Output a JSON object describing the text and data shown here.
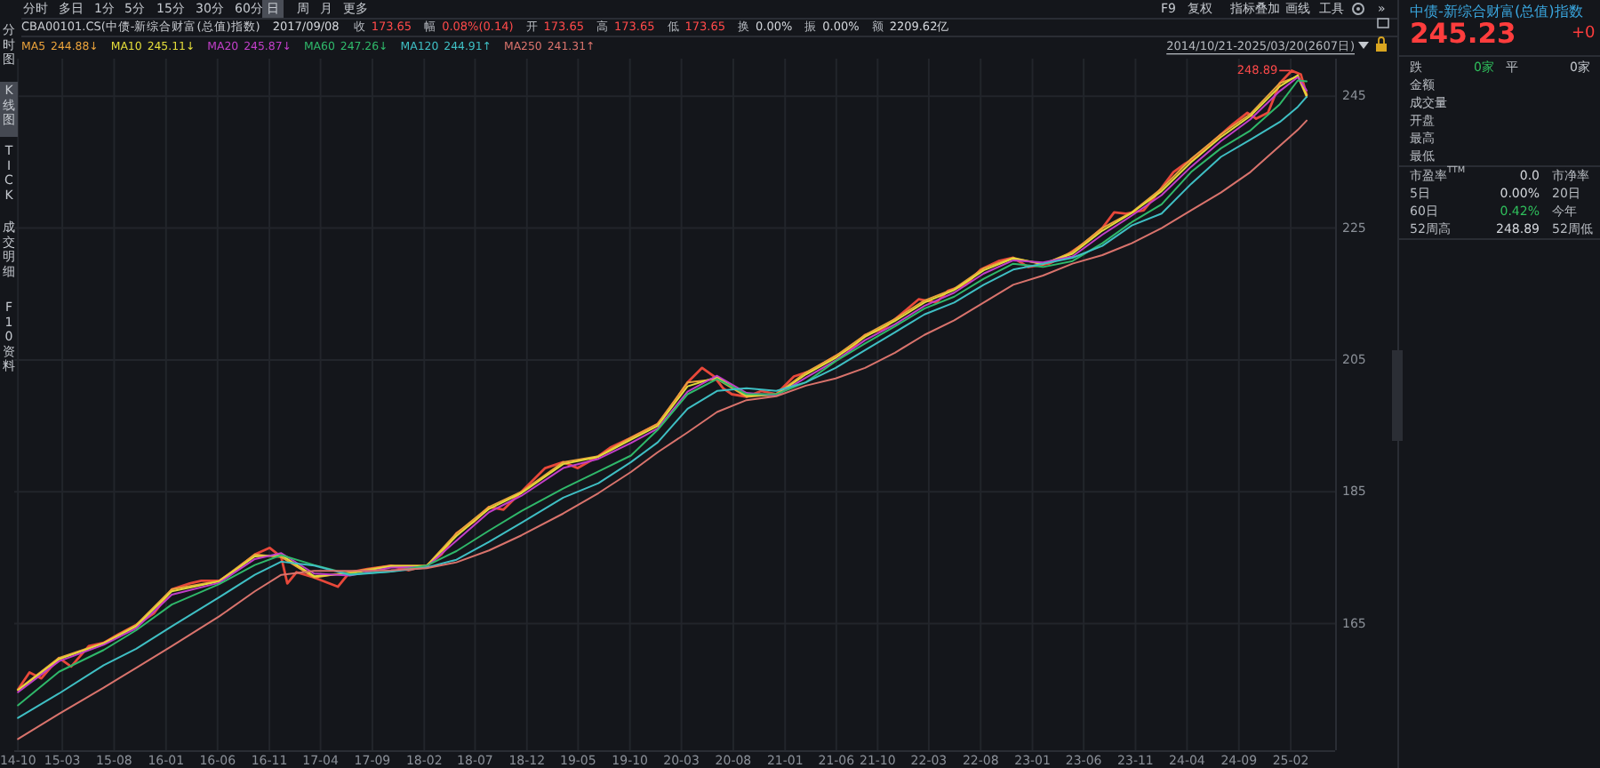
{
  "chart_data": [
    {
      "type": "line",
      "title": "CBA00101.CS(中债-新综合财富(总值)指数)",
      "subtitle": "2014/10/21-2025/03/20(2607日)",
      "xlim": [
        "2014-10-10",
        "2025-06-12"
      ],
      "xticks": [
        {
          "value": "2014-10-21",
          "label": "14-10"
        },
        {
          "value": "2015-03",
          "label": "15-03"
        },
        {
          "value": "2015-08",
          "label": "15-08"
        },
        {
          "value": "2016-01",
          "label": "16-01"
        },
        {
          "value": "2016-06",
          "label": "16-06"
        },
        {
          "value": "2016-11",
          "label": "16-11"
        },
        {
          "value": "2017-04",
          "label": "17-04"
        },
        {
          "value": "2017-09",
          "label": "17-09"
        },
        {
          "value": "2018-02",
          "label": "18-02"
        },
        {
          "value": "2018-07",
          "label": "18-07"
        },
        {
          "value": "2018-12",
          "label": "18-12"
        },
        {
          "value": "2019-05",
          "label": "19-05"
        },
        {
          "value": "2019-10",
          "label": "19-10"
        },
        {
          "value": "2020-03",
          "label": "20-03"
        },
        {
          "value": "2020-08",
          "label": "20-08"
        },
        {
          "value": "2021-01",
          "label": "21-01"
        },
        {
          "value": "2021-06",
          "label": "21-06"
        },
        {
          "value": "2021-10",
          "label": "21-10"
        },
        {
          "value": "2022-03",
          "label": "22-03"
        },
        {
          "value": "2022-08",
          "label": "22-08"
        },
        {
          "value": "2023-01",
          "label": "23-01"
        },
        {
          "value": "2023-06",
          "label": "23-06"
        },
        {
          "value": "2023-11",
          "label": "23-11"
        },
        {
          "value": "2024-04",
          "label": "24-04"
        },
        {
          "value": "2024-09",
          "label": "24-09"
        },
        {
          "value": "2025-02",
          "label": "25-02"
        }
      ],
      "ylim": [
        145.8,
        250.7
      ],
      "yticks": [
        165,
        185,
        205,
        225,
        245
      ],
      "grid": true,
      "legend": "top left",
      "series": [
        {
          "color": "#e8483a",
          "x": [
            "2014-10-21",
            "2014-11-24",
            "2014-12-29",
            "2015-02-19",
            "2015-03-27",
            "2015-05-18",
            "2015-07-01",
            "2015-08-14",
            "2015-10-05",
            "2015-11-27",
            "2016-01-18",
            "2016-03-11",
            "2016-04-14",
            "2016-06-06",
            "2016-07-28",
            "2016-09-19",
            "2016-11-02",
            "2016-12-06",
            "2016-12-24",
            "2017-01-20",
            "2017-03-13",
            "2017-05-22",
            "2017-06-26",
            "2017-08-17",
            "2017-10-26",
            "2017-12-18",
            "2018-02-08",
            "2018-03-24",
            "2018-05-07",
            "2018-06-28",
            "2018-08-11",
            "2018-09-23",
            "2018-11-15",
            "2019-01-24",
            "2019-03-18",
            "2019-04-30",
            "2019-06-30",
            "2019-08-04",
            "2019-10-04",
            "2019-12-22",
            "2020-02-13",
            "2020-03-19",
            "2020-05-01",
            "2020-06-05",
            "2020-07-02",
            "2020-07-28",
            "2020-09-09",
            "2020-10-23",
            "2020-12-06",
            "2021-01-27",
            "2021-03-21",
            "2021-05-30",
            "2021-07-21",
            "2021-08-25",
            "2021-10-17",
            "2021-12-08",
            "2022-01-30",
            "2022-03-23",
            "2022-04-27",
            "2022-06-18",
            "2022-08-01",
            "2022-09-23",
            "2022-11-05",
            "2022-12-19",
            "2023-02-18",
            "2023-04-12",
            "2023-06-03",
            "2023-07-26",
            "2023-08-30",
            "2023-10-04",
            "2023-11-25",
            "2023-12-30",
            "2024-02-21",
            "2024-03-27",
            "2024-04-30",
            "2024-06-22",
            "2024-08-13",
            "2024-09-26",
            "2024-10-22",
            "2024-11-26",
            "2024-12-31",
            "2025-02-04",
            "2025-03-03",
            "2025-03-20"
          ],
          "values": [
            155.0,
            157.6,
            156.7,
            159.8,
            158.5,
            161.6,
            162.1,
            163.4,
            164.8,
            166.6,
            170.2,
            171.1,
            171.5,
            171.5,
            173.3,
            175.5,
            176.5,
            175.1,
            171.1,
            172.8,
            172.0,
            170.6,
            172.8,
            173.3,
            173.8,
            173.1,
            173.8,
            175.5,
            178.7,
            180.5,
            182.7,
            182.3,
            185.0,
            188.6,
            189.5,
            188.6,
            190.4,
            191.7,
            193.2,
            195.3,
            198.9,
            201.6,
            203.8,
            202.5,
            200.7,
            199.8,
            199.4,
            200.3,
            199.8,
            202.5,
            203.4,
            205.6,
            207.0,
            208.8,
            209.7,
            211.9,
            214.2,
            213.7,
            215.5,
            216.4,
            218.7,
            220.0,
            220.5,
            219.1,
            219.6,
            220.9,
            222.7,
            225.0,
            227.4,
            227.2,
            227.7,
            229.9,
            233.5,
            234.8,
            235.8,
            238.4,
            240.7,
            242.5,
            241.6,
            242.5,
            247.0,
            248.89,
            248.3,
            245.23
          ]
        },
        {
          "name": "MA5",
          "color": "#e9a23b",
          "x": [
            "2014-10-21",
            "2015-02-19",
            "2015-07-01",
            "2015-10-05",
            "2016-01-18",
            "2016-06-06",
            "2016-09-19",
            "2016-12-06",
            "2017-03-13",
            "2017-06-26",
            "2017-10-26",
            "2018-02-08",
            "2018-05-07",
            "2018-08-11",
            "2018-11-15",
            "2019-03-18",
            "2019-06-30",
            "2019-10-04",
            "2019-12-22",
            "2020-03-19",
            "2020-06-14",
            "2020-09-09",
            "2020-12-06",
            "2021-03-03",
            "2021-05-30",
            "2021-08-25",
            "2021-11-21",
            "2022-02-16",
            "2022-05-15",
            "2022-08-10",
            "2022-11-05",
            "2023-02-01",
            "2023-04-29",
            "2023-07-26",
            "2023-10-21",
            "2024-01-17",
            "2024-04-13",
            "2024-07-10",
            "2024-10-05",
            "2024-12-31",
            "2025-02-22",
            "2025-03-20"
          ],
          "values": [
            155.0,
            159.8,
            162.1,
            164.8,
            170.2,
            171.5,
            175.5,
            175.1,
            172.0,
            172.8,
            173.8,
            173.8,
            178.7,
            182.7,
            185.0,
            189.5,
            190.4,
            193.2,
            195.3,
            201.6,
            202.1,
            199.4,
            199.8,
            203.1,
            205.6,
            208.8,
            211.2,
            214.0,
            215.8,
            218.9,
            220.5,
            219.5,
            221.4,
            225.0,
            227.4,
            231.0,
            235.5,
            239.2,
            242.3,
            247.0,
            248.0,
            244.88
          ]
        },
        {
          "name": "MA10",
          "color": "#e3dc3a",
          "x": [
            "2014-10-21",
            "2015-02-19",
            "2015-07-01",
            "2015-10-05",
            "2016-01-18",
            "2016-06-06",
            "2016-09-19",
            "2016-12-06",
            "2017-03-13",
            "2017-06-26",
            "2017-10-26",
            "2018-02-08",
            "2018-05-07",
            "2018-08-11",
            "2018-11-15",
            "2019-03-18",
            "2019-06-30",
            "2019-10-04",
            "2019-12-22",
            "2020-03-19",
            "2020-06-14",
            "2020-09-09",
            "2020-12-06",
            "2021-03-03",
            "2021-05-30",
            "2021-08-25",
            "2021-11-21",
            "2022-02-16",
            "2022-05-15",
            "2022-08-10",
            "2022-11-05",
            "2023-02-01",
            "2023-04-29",
            "2023-07-26",
            "2023-10-21",
            "2024-01-17",
            "2024-04-13",
            "2024-07-10",
            "2024-10-05",
            "2024-12-31",
            "2025-02-22",
            "2025-03-20"
          ],
          "values": [
            154.9,
            159.6,
            162.0,
            164.6,
            169.9,
            171.4,
            175.2,
            175.4,
            172.2,
            172.6,
            173.7,
            173.7,
            178.3,
            182.4,
            184.8,
            189.2,
            190.3,
            192.9,
            195.0,
            201.0,
            202.4,
            199.6,
            199.7,
            202.8,
            205.3,
            208.5,
            210.9,
            213.7,
            215.6,
            218.6,
            220.4,
            219.6,
            221.1,
            224.6,
            227.3,
            230.6,
            235.0,
            238.8,
            242.0,
            246.5,
            248.2,
            245.11
          ]
        },
        {
          "name": "MA20",
          "color": "#c23fc9",
          "x": [
            "2014-10-21",
            "2015-02-19",
            "2015-07-01",
            "2015-10-05",
            "2016-01-18",
            "2016-06-06",
            "2016-09-19",
            "2016-12-06",
            "2017-03-13",
            "2017-06-26",
            "2017-10-26",
            "2018-02-08",
            "2018-05-07",
            "2018-08-11",
            "2018-11-15",
            "2019-03-18",
            "2019-06-30",
            "2019-10-04",
            "2019-12-22",
            "2020-03-19",
            "2020-06-14",
            "2020-09-09",
            "2020-12-06",
            "2021-03-03",
            "2021-05-30",
            "2021-08-25",
            "2021-11-21",
            "2022-02-16",
            "2022-05-15",
            "2022-08-10",
            "2022-11-05",
            "2023-02-01",
            "2023-04-29",
            "2023-07-26",
            "2023-10-21",
            "2024-01-17",
            "2024-04-13",
            "2024-07-10",
            "2024-10-05",
            "2024-12-31",
            "2025-02-22",
            "2025-03-20"
          ],
          "values": [
            154.6,
            159.3,
            161.8,
            164.3,
            169.4,
            171.2,
            174.8,
            175.7,
            172.6,
            172.3,
            173.5,
            173.6,
            177.6,
            181.9,
            184.4,
            188.6,
            190.0,
            192.4,
            194.6,
            200.2,
            202.6,
            200.0,
            199.6,
            202.3,
            204.9,
            208.0,
            210.4,
            213.2,
            215.2,
            218.1,
            220.1,
            219.8,
            220.7,
            224.0,
            226.9,
            230.0,
            234.3,
            238.2,
            241.5,
            245.8,
            247.9,
            245.87
          ]
        },
        {
          "name": "MA60",
          "color": "#2fb86a",
          "x": [
            "2014-10-21",
            "2015-02-19",
            "2015-07-01",
            "2015-10-05",
            "2016-01-18",
            "2016-06-06",
            "2016-09-19",
            "2016-12-06",
            "2017-03-13",
            "2017-06-26",
            "2017-10-26",
            "2018-02-08",
            "2018-05-07",
            "2018-08-11",
            "2018-11-15",
            "2019-03-18",
            "2019-06-30",
            "2019-10-04",
            "2019-12-22",
            "2020-03-19",
            "2020-06-14",
            "2020-09-09",
            "2020-12-06",
            "2021-03-03",
            "2021-05-30",
            "2021-08-25",
            "2021-11-21",
            "2022-02-16",
            "2022-05-15",
            "2022-08-10",
            "2022-11-05",
            "2023-02-01",
            "2023-04-29",
            "2023-07-26",
            "2023-10-21",
            "2024-01-17",
            "2024-04-13",
            "2024-07-10",
            "2024-10-05",
            "2024-12-31",
            "2025-02-22",
            "2025-03-20"
          ],
          "values": [
            152.6,
            157.7,
            161.0,
            164.0,
            167.9,
            171.0,
            173.9,
            175.4,
            173.9,
            172.5,
            172.9,
            173.8,
            176.0,
            179.1,
            182.1,
            185.5,
            188.1,
            190.5,
            194.4,
            199.8,
            202.1,
            199.8,
            199.8,
            201.6,
            204.8,
            207.5,
            210.1,
            212.8,
            214.6,
            217.3,
            219.6,
            219.1,
            220.0,
            222.7,
            225.9,
            228.6,
            233.5,
            237.1,
            239.8,
            243.8,
            247.4,
            247.26
          ]
        },
        {
          "name": "MA120",
          "color": "#3fbfc4",
          "x": [
            "2014-10-21",
            "2015-02-19",
            "2015-07-01",
            "2015-10-05",
            "2016-01-18",
            "2016-06-06",
            "2016-09-19",
            "2016-12-06",
            "2017-03-13",
            "2017-06-26",
            "2017-10-26",
            "2018-02-08",
            "2018-05-07",
            "2018-08-11",
            "2018-11-15",
            "2019-03-18",
            "2019-06-30",
            "2019-10-04",
            "2019-12-22",
            "2020-03-19",
            "2020-06-14",
            "2020-09-09",
            "2020-12-06",
            "2021-03-03",
            "2021-05-30",
            "2021-08-25",
            "2021-11-21",
            "2022-02-16",
            "2022-05-15",
            "2022-08-10",
            "2022-11-05",
            "2023-02-01",
            "2023-04-29",
            "2023-07-26",
            "2023-10-21",
            "2024-01-17",
            "2024-04-13",
            "2024-07-10",
            "2024-10-05",
            "2024-12-31",
            "2025-02-22",
            "2025-03-20"
          ],
          "values": [
            150.7,
            154.4,
            158.7,
            161.2,
            164.6,
            169.0,
            172.4,
            174.4,
            173.8,
            172.4,
            172.9,
            173.5,
            174.7,
            177.4,
            180.3,
            184.1,
            186.3,
            189.5,
            192.5,
            197.6,
            200.3,
            200.7,
            200.3,
            201.6,
            203.8,
            206.5,
            209.2,
            211.9,
            213.7,
            216.4,
            218.7,
            219.6,
            220.5,
            222.3,
            225.4,
            227.2,
            231.7,
            235.8,
            238.4,
            241.1,
            243.4,
            244.91
          ]
        },
        {
          "name": "MA250",
          "color": "#d9736c",
          "x": [
            "2014-10-21",
            "2015-02-19",
            "2015-07-01",
            "2015-10-05",
            "2016-01-18",
            "2016-06-06",
            "2016-09-19",
            "2016-12-06",
            "2017-03-13",
            "2017-06-26",
            "2017-10-26",
            "2018-02-08",
            "2018-05-07",
            "2018-08-11",
            "2018-11-15",
            "2019-03-18",
            "2019-06-30",
            "2019-10-04",
            "2019-12-22",
            "2020-03-19",
            "2020-06-14",
            "2020-09-09",
            "2020-12-06",
            "2021-03-03",
            "2021-05-30",
            "2021-08-25",
            "2021-11-21",
            "2022-02-16",
            "2022-05-15",
            "2022-08-10",
            "2022-11-05",
            "2023-02-01",
            "2023-04-29",
            "2023-07-26",
            "2023-10-21",
            "2024-01-17",
            "2024-04-13",
            "2024-07-10",
            "2024-10-05",
            "2024-12-31",
            "2025-02-22",
            "2025-03-20"
          ],
          "values": [
            147.5,
            151.3,
            155.3,
            158.3,
            161.6,
            166.1,
            169.9,
            172.4,
            173.0,
            173.0,
            173.1,
            173.4,
            174.3,
            176.1,
            178.4,
            181.7,
            184.8,
            188.0,
            191.0,
            194.0,
            197.1,
            198.9,
            199.5,
            201.1,
            202.2,
            203.8,
            206.1,
            208.8,
            211.0,
            213.7,
            216.4,
            217.8,
            219.6,
            220.9,
            222.7,
            225.0,
            227.7,
            230.4,
            233.5,
            237.5,
            239.9,
            241.31
          ]
        }
      ],
      "annotations": [
        "分时",
        "多日",
        "1分",
        "5分",
        "15分",
        "30分",
        "60分",
        "日",
        "周",
        "月",
        "更多",
        "分时图",
        "K线图",
        "TICK",
        "成交明细",
        "F10资料",
        "2017/09/08",
        "收",
        "173.65",
        "幅",
        "0.08%(0.14)",
        "开",
        "173.65",
        "高",
        "173.65",
        "低",
        "173.65",
        "换",
        "0.00%",
        "振",
        "0.00%",
        "额",
        "2209.62亿",
        "F9",
        "复权",
        "指标叠加",
        "画线",
        "工具",
        "»",
        "244.88↓",
        "245.11↓",
        "245.87↓",
        "247.26↓",
        "244.91↑",
        "241.31↑",
        {
          "text": "248.89",
          "x": "2025-02-04",
          "y": 248.89
        }
      ]
    },
    {
      "type": "other",
      "title": "中债-新综合财富(总值)指数",
      "annotations": [
        "245.23",
        "+0",
        "跌",
        "0家",
        "平",
        "0家",
        "金额",
        "成交量",
        "开盘",
        "最高",
        "最低",
        "市盈率$^{TTM}$",
        "0.0",
        "市净率",
        "5日",
        "0.00%",
        "20日",
        "60日",
        "0.42%",
        "今年",
        "52周高",
        "248.89",
        "52周低"
      ]
    }
  ]
}
